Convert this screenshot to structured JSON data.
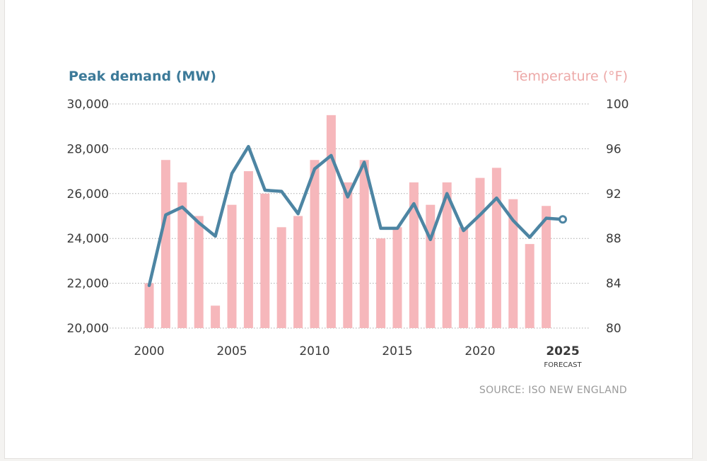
{
  "colors": {
    "line": "#4d85a3",
    "bars": "#f6b7bb",
    "left_title": "#3c7a99",
    "right_title": "#eda9a8",
    "grid": "#a9a9a9",
    "tick_text": "#3a3a3a",
    "source": "#9b9b9b"
  },
  "source": "SOURCE: ISO NEW ENGLAND",
  "chart_data": {
    "type": "bar+line",
    "left_axis_title": "Peak demand (MW)",
    "right_axis_title": "Temperature (°F)",
    "left_ylim": [
      20000,
      30000
    ],
    "right_ylim": [
      80,
      100
    ],
    "left_ticks": [
      "30,000",
      "28,000",
      "26,000",
      "24,000",
      "22,000",
      "20,000"
    ],
    "right_ticks": [
      "100",
      "96",
      "92",
      "88",
      "84",
      "80"
    ],
    "x_tick_labels": [
      "2000",
      "2005",
      "2010",
      "2015",
      "2020",
      "2025"
    ],
    "x_tick_sublabel": "FORECAST",
    "grid": true,
    "series": [
      {
        "type": "bar",
        "axis": "right",
        "years": [
          2000,
          2001,
          2002,
          2003,
          2004,
          2005,
          2006,
          2007,
          2008,
          2009,
          2010,
          2011,
          2012,
          2013,
          2014,
          2015,
          2016,
          2017,
          2018,
          2019,
          2020,
          2021,
          2022,
          2023,
          2024
        ],
        "values": [
          84,
          95,
          93,
          90,
          82,
          91,
          94,
          92,
          89,
          90,
          95,
          99,
          93,
          95,
          88,
          89,
          93,
          91,
          93,
          89,
          93.4,
          94.3,
          91.5,
          87.5,
          90.9
        ]
      },
      {
        "type": "line",
        "axis": "left",
        "years": [
          2000,
          2001,
          2002,
          2003,
          2004,
          2005,
          2006,
          2007,
          2008,
          2009,
          2010,
          2011,
          2012,
          2013,
          2014,
          2015,
          2016,
          2017,
          2018,
          2019,
          2020,
          2021,
          2022,
          2023,
          2024,
          2025
        ],
        "values": [
          21900,
          25050,
          25400,
          24700,
          24100,
          26900,
          28100,
          26150,
          26100,
          25100,
          27100,
          27700,
          25850,
          27400,
          24450,
          24450,
          25550,
          23950,
          26000,
          24350,
          25050,
          25800,
          24800,
          24050,
          24900,
          24850
        ],
        "forecast_from": 2024
      }
    ]
  }
}
